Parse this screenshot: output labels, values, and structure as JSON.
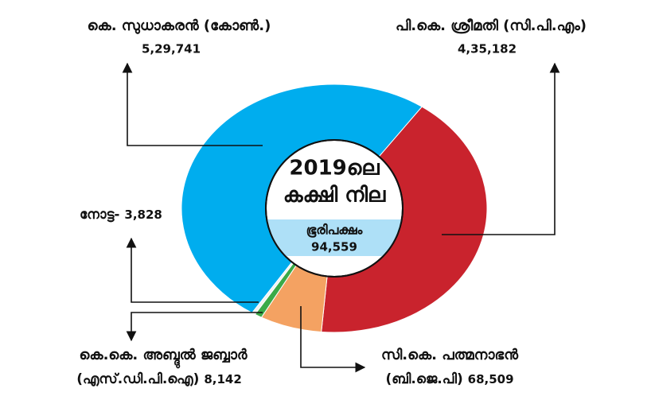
{
  "chart_data": {
    "type": "donut",
    "center_title": [
      "2019ലെ",
      "കക്ഷി നില"
    ],
    "margin_label": "ഭൂരിപക്ഷം",
    "margin": 94559,
    "margin_value_label": "94,559",
    "categories": [
      "പി.കെ. ശ്രീമതി",
      "സി.കെ. പത്മനാഭൻ",
      "കെ.കെ. അബ്ദുൽ ജബ്ബാർ",
      "നോട്ട-",
      "കെ. സുധാകരൻ"
    ],
    "parties": [
      "(സി.പി.എം)",
      "(ബി.ജെ.പി)",
      "(എസ്.ഡി.പി.ഐ)",
      null,
      "(കോൺ.)"
    ],
    "values": [
      435182,
      68509,
      8142,
      3828,
      529741
    ],
    "value_labels": [
      "4,35,182",
      "68,509",
      "8,142",
      "3,828",
      "5,29,741"
    ],
    "colors": [
      "#c9232d",
      "#f4a262",
      "#3aaa48",
      "#f2f2f2",
      "#00adee"
    ]
  }
}
